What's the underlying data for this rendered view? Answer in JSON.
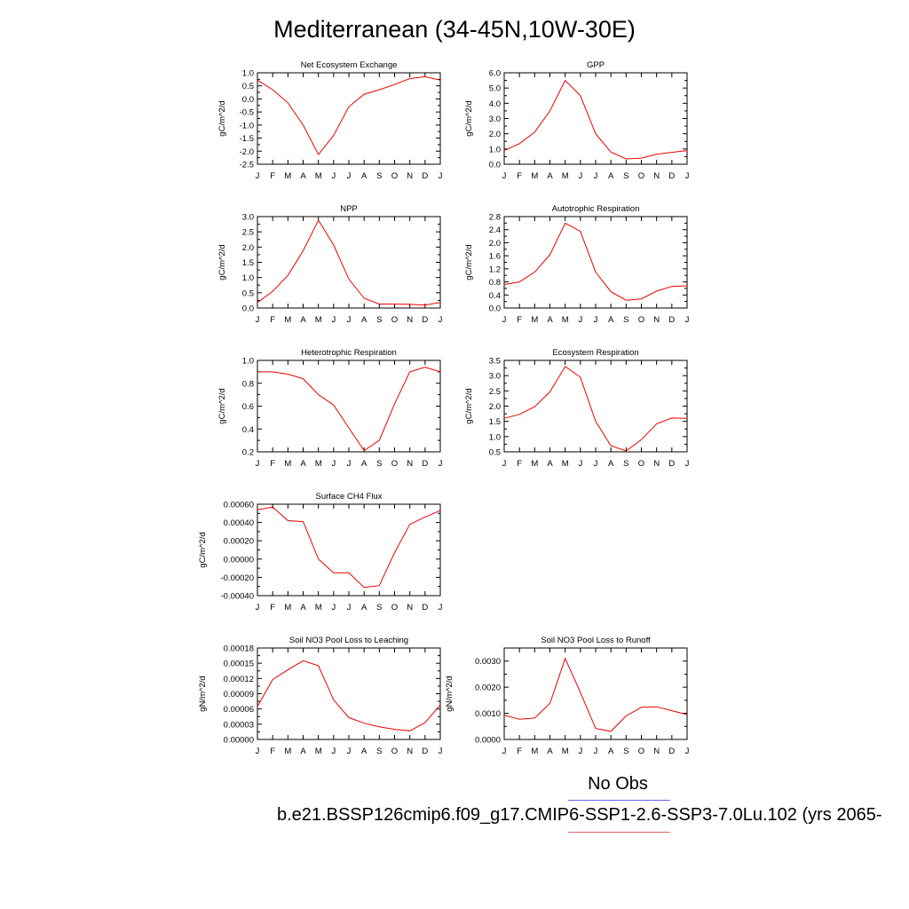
{
  "title": "Mediterranean (34-45N,10W-30E)",
  "legend": {
    "obs_label": "No Obs",
    "case_label": "b.e21.BSSP126cmip6.f09_g17.CMIP6-SSP1-2.6-SSP3-7.0Lu.102 (yrs 2065-",
    "line_color": "#ee0000",
    "obs_line_color": "#6666ee"
  },
  "chart_data": [
    {
      "type": "line",
      "title": "Net Ecosystem Exchange",
      "ylabel": "gC/m^2/d",
      "categories": [
        "J",
        "F",
        "M",
        "A",
        "M",
        "J",
        "J",
        "A",
        "S",
        "O",
        "N",
        "D",
        "J"
      ],
      "ylim": [
        -2.5,
        1.0
      ],
      "yticks": [
        "1.0",
        "0.5",
        "0.0",
        "-0.5",
        "-1.0",
        "-1.5",
        "-2.0",
        "-2.5"
      ],
      "values": [
        0.72,
        0.35,
        -0.15,
        -1.0,
        -2.13,
        -1.4,
        -0.3,
        0.18,
        0.35,
        0.55,
        0.78,
        0.85,
        0.72
      ]
    },
    {
      "type": "line",
      "title": "GPP",
      "ylabel": "gC/m^2/d",
      "categories": [
        "J",
        "F",
        "M",
        "A",
        "M",
        "J",
        "J",
        "A",
        "S",
        "O",
        "N",
        "D",
        "J"
      ],
      "ylim": [
        0.0,
        6.0
      ],
      "yticks": [
        "6.0",
        "5.0",
        "4.0",
        "3.0",
        "2.0",
        "1.0",
        "0.0"
      ],
      "values": [
        0.9,
        1.35,
        2.1,
        3.5,
        5.5,
        4.5,
        2.0,
        0.8,
        0.35,
        0.4,
        0.65,
        0.78,
        0.9
      ]
    },
    {
      "type": "line",
      "title": "NPP",
      "ylabel": "gC/m^2/d",
      "categories": [
        "J",
        "F",
        "M",
        "A",
        "M",
        "J",
        "J",
        "A",
        "S",
        "O",
        "N",
        "D",
        "J"
      ],
      "ylim": [
        0.0,
        3.0
      ],
      "yticks": [
        "3.0",
        "2.5",
        "2.0",
        "1.5",
        "1.0",
        "0.5",
        "0.0"
      ],
      "values": [
        0.18,
        0.55,
        1.07,
        1.88,
        2.88,
        2.07,
        0.95,
        0.32,
        0.13,
        0.13,
        0.12,
        0.1,
        0.18
      ]
    },
    {
      "type": "line",
      "title": "Autotrophic Respiration",
      "ylabel": "gC/m^2/d",
      "categories": [
        "J",
        "F",
        "M",
        "A",
        "M",
        "J",
        "J",
        "A",
        "S",
        "O",
        "N",
        "D",
        "J"
      ],
      "ylim": [
        0.0,
        2.8
      ],
      "yticks": [
        "2.8",
        "2.4",
        "2.0",
        "1.6",
        "1.2",
        "0.8",
        "0.4",
        "0.0"
      ],
      "values": [
        0.72,
        0.8,
        1.1,
        1.63,
        2.6,
        2.35,
        1.1,
        0.5,
        0.24,
        0.28,
        0.52,
        0.66,
        0.68
      ]
    },
    {
      "type": "line",
      "title": "Heterotrophic Respiration",
      "ylabel": "gC/m^2/d",
      "categories": [
        "J",
        "F",
        "M",
        "A",
        "M",
        "J",
        "J",
        "A",
        "S",
        "O",
        "N",
        "D",
        "J"
      ],
      "ylim": [
        0.2,
        1.0
      ],
      "yticks": [
        "1.0",
        "0.8",
        "0.6",
        "0.4",
        "0.2"
      ],
      "values": [
        0.9,
        0.9,
        0.88,
        0.84,
        0.7,
        0.61,
        0.41,
        0.21,
        0.3,
        0.62,
        0.9,
        0.94,
        0.9
      ]
    },
    {
      "type": "line",
      "title": "Ecosystem Respiration",
      "ylabel": "gC/m^2/d",
      "categories": [
        "J",
        "F",
        "M",
        "A",
        "M",
        "J",
        "J",
        "A",
        "S",
        "O",
        "N",
        "D",
        "J"
      ],
      "ylim": [
        0.5,
        3.5
      ],
      "yticks": [
        "3.5",
        "3.0",
        "2.5",
        "2.0",
        "1.5",
        "1.0",
        "0.5"
      ],
      "values": [
        1.6,
        1.73,
        1.98,
        2.47,
        3.3,
        2.95,
        1.5,
        0.7,
        0.53,
        0.9,
        1.42,
        1.61,
        1.6
      ]
    },
    {
      "type": "line",
      "title": "Surface CH4 Flux",
      "ylabel": "gC/m^2/d",
      "categories": [
        "J",
        "F",
        "M",
        "A",
        "M",
        "J",
        "J",
        "A",
        "S",
        "O",
        "N",
        "D",
        "J"
      ],
      "ylim": [
        -0.0004,
        0.0006
      ],
      "yticks": [
        "0.00060",
        "0.00040",
        "0.00020",
        "0.00000",
        "-0.00020",
        "-0.00040"
      ],
      "values": [
        0.00054,
        0.00057,
        0.00042,
        0.00041,
        0.0,
        -0.00015,
        -0.00015,
        -0.00031,
        -0.00029,
        7e-05,
        0.00038,
        0.00046,
        0.00053
      ]
    },
    {
      "type": "line",
      "title": "Soil NO3 Pool Loss to Leaching",
      "ylabel": "gN/m^2/d",
      "categories": [
        "J",
        "F",
        "M",
        "A",
        "M",
        "J",
        "J",
        "A",
        "S",
        "O",
        "N",
        "D",
        "J"
      ],
      "ylim": [
        0.0,
        0.00018
      ],
      "yticks": [
        "0.00018",
        "0.00015",
        "0.00012",
        "0.00009",
        "0.00006",
        "0.00003",
        "0.00000"
      ],
      "values": [
        6.5e-05,
        0.000118,
        0.000137,
        0.000155,
        0.000145,
        7.8e-05,
        4.3e-05,
        3.2e-05,
        2.5e-05,
        2e-05,
        1.7e-05,
        3.3e-05,
        6.8e-05
      ]
    },
    {
      "type": "line",
      "title": "Soil NO3 Pool Loss to Runoff",
      "ylabel": "gN/m^2/d",
      "categories": [
        "J",
        "F",
        "M",
        "A",
        "M",
        "J",
        "J",
        "A",
        "S",
        "O",
        "N",
        "D",
        "J"
      ],
      "ylim": [
        0.0,
        0.0035
      ],
      "yticks": [
        "0.0030",
        "0.0020",
        "0.0010",
        "0.0000"
      ],
      "ytick_values": [
        0.003,
        0.002,
        0.001,
        0.0
      ],
      "values": [
        0.00093,
        0.00077,
        0.00082,
        0.00138,
        0.0031,
        0.0018,
        0.00042,
        0.00031,
        0.0009,
        0.00123,
        0.00125,
        0.0011,
        0.00095
      ]
    }
  ]
}
